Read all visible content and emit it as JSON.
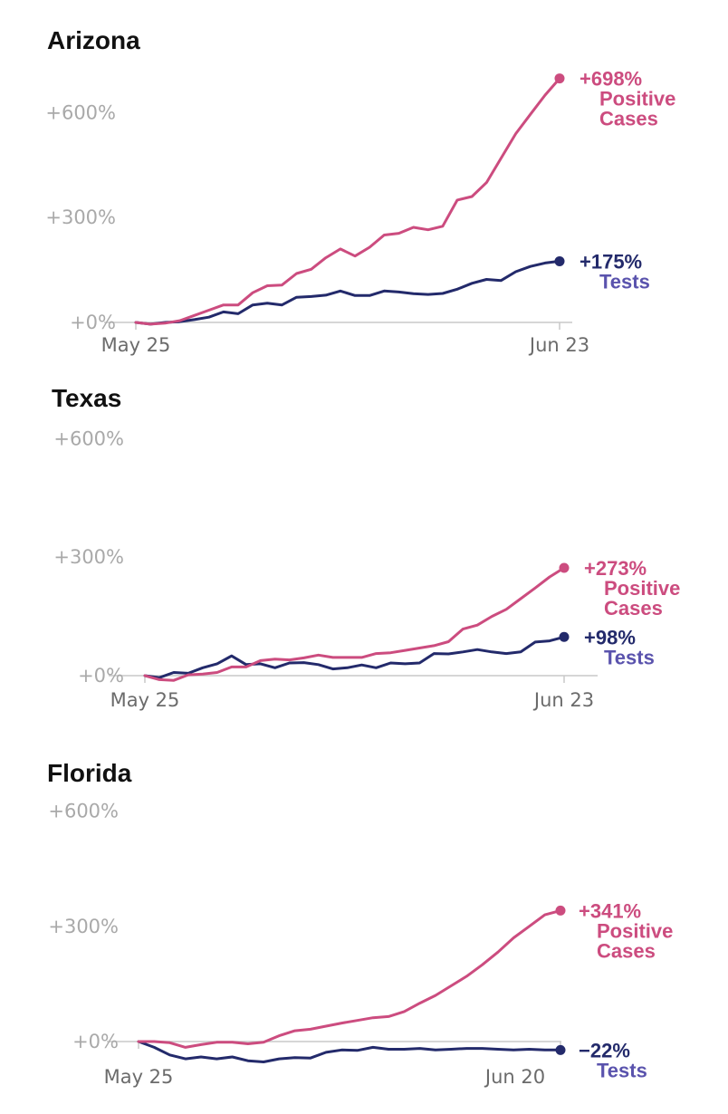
{
  "colors": {
    "cases": "#cc4c7f",
    "tests": "#232a6b",
    "tests_label": "#5a53ad",
    "grid": "#c8c8c8",
    "tick_y": "#a9a9a9",
    "tick_x": "#6b6b6b",
    "title": "#111111"
  },
  "chart_data": [
    {
      "type": "line",
      "title": "Arizona",
      "ylim": [
        0,
        698
      ],
      "yticks": [
        "+600%",
        "+300%",
        "+0%"
      ],
      "yticks_values": [
        600,
        300,
        0
      ],
      "xticks": [
        "May 25",
        "Jun 23"
      ],
      "series": [
        {
          "key": "cases",
          "end_label": "+698%",
          "name_lines": [
            "Positive",
            "Cases"
          ],
          "values": [
            0,
            -5,
            -2,
            5,
            20,
            35,
            50,
            50,
            85,
            105,
            107,
            140,
            152,
            185,
            210,
            190,
            215,
            250,
            255,
            272,
            265,
            275,
            350,
            360,
            400,
            470,
            540,
            595,
            650,
            698
          ]
        },
        {
          "key": "tests",
          "end_label": "+175%",
          "name_lines": [
            "Tests"
          ],
          "values": [
            0,
            -5,
            0,
            2,
            8,
            15,
            30,
            25,
            50,
            55,
            50,
            72,
            74,
            78,
            90,
            77,
            77,
            90,
            87,
            82,
            80,
            83,
            95,
            112,
            123,
            120,
            145,
            160,
            170,
            175
          ]
        }
      ]
    },
    {
      "type": "line",
      "title": "Texas",
      "ylim": [
        0,
        600
      ],
      "yticks": [
        "+600%",
        "+300%",
        "+0%"
      ],
      "yticks_values": [
        600,
        300,
        0
      ],
      "xticks": [
        "May 25",
        "Jun 23"
      ],
      "series": [
        {
          "key": "cases",
          "end_label": "+273%",
          "name_lines": [
            "Positive",
            "Cases"
          ],
          "values": [
            0,
            -10,
            -12,
            2,
            4,
            8,
            22,
            22,
            38,
            42,
            40,
            45,
            52,
            46,
            46,
            46,
            56,
            58,
            64,
            70,
            76,
            86,
            118,
            128,
            150,
            168,
            195,
            222,
            250,
            273
          ]
        },
        {
          "key": "tests",
          "end_label": "+98%",
          "name_lines": [
            "Tests"
          ],
          "values": [
            0,
            -5,
            8,
            6,
            20,
            30,
            50,
            28,
            30,
            20,
            32,
            33,
            28,
            17,
            20,
            27,
            20,
            32,
            30,
            32,
            56,
            55,
            60,
            66,
            60,
            56,
            60,
            85,
            88,
            98
          ]
        }
      ]
    },
    {
      "type": "line",
      "title": "Florida",
      "ylim": [
        0,
        600
      ],
      "yticks": [
        "+600%",
        "+300%",
        "+0%"
      ],
      "yticks_values": [
        600,
        300,
        0
      ],
      "xticks": [
        "May 25",
        "Jun 20"
      ],
      "series": [
        {
          "key": "cases",
          "end_label": "+341%",
          "name_lines": [
            "Positive",
            "Cases"
          ],
          "values": [
            0,
            0,
            -3,
            -15,
            -8,
            -2,
            -2,
            -6,
            -2,
            15,
            28,
            32,
            40,
            48,
            55,
            62,
            65,
            78,
            100,
            120,
            145,
            170,
            200,
            233,
            270,
            300,
            330,
            341
          ]
        },
        {
          "key": "tests",
          "end_label": "−22%",
          "name_lines": [
            "Tests"
          ],
          "values": [
            0,
            -15,
            -35,
            -45,
            -40,
            -45,
            -40,
            -50,
            -53,
            -45,
            -42,
            -43,
            -28,
            -22,
            -23,
            -15,
            -20,
            -20,
            -18,
            -22,
            -20,
            -18,
            -18,
            -20,
            -22,
            -20,
            -22,
            -22
          ]
        }
      ]
    }
  ]
}
